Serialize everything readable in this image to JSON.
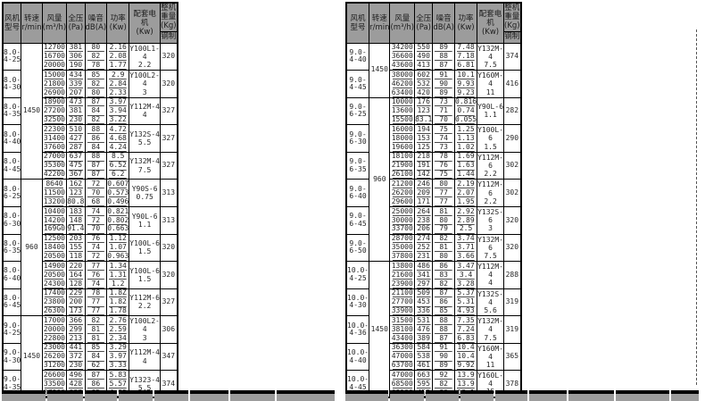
{
  "header": {
    "model": "风机型号",
    "speed": "转速",
    "speed_unit": "r/min",
    "flow": "风量",
    "flow_unit": "(m³/h)",
    "pressure": "全压",
    "pressure_unit": "(Pa)",
    "noise": "噪音",
    "noise_unit": "dB(A)",
    "power": "功率",
    "power_unit": "(Kw)",
    "motor": "配套电机",
    "motor_unit": "(Kw)",
    "weight": "整机重量(Kg)",
    "weight_sub": "钢制"
  },
  "colors": {
    "header_bg": "#9c9c9c",
    "border": "#000000",
    "text": "#262626",
    "background": "#ffffff"
  },
  "tables": [
    {
      "name": "left",
      "speed_spans": [
        {
          "label": "1450",
          "start": 0,
          "count": 5
        },
        {
          "label": "960",
          "start": 5,
          "count": 5
        },
        {
          "label": "1450",
          "start": 10,
          "count": 3
        }
      ],
      "groups": [
        {
          "model": "8.0-4-25",
          "motor": "Y100L1-4",
          "motor_kw": "2.2",
          "weight": "320",
          "rows": [
            [
              "12700",
              "381",
              "80",
              "2.16"
            ],
            [
              "16700",
              "306",
              "82",
              "2.08"
            ],
            [
              "20000",
              "190",
              "78",
              "1.77"
            ]
          ]
        },
        {
          "model": "8.0-4-30",
          "motor": "Y100L2-4",
          "motor_kw": "3",
          "weight": "320",
          "rows": [
            [
              "15000",
              "434",
              "85",
              "2.9"
            ],
            [
              "21800",
              "339",
              "82",
              "2.84"
            ],
            [
              "26900",
              "207",
              "80",
              "2.33"
            ]
          ]
        },
        {
          "model": "8.0-4-35",
          "motor": "Y112M-4",
          "motor_kw": "4",
          "weight": "327",
          "rows": [
            [
              "18900",
              "473",
              "87",
              "3.97"
            ],
            [
              "27200",
              "381",
              "84",
              "3.94"
            ],
            [
              "32500",
              "230",
              "82",
              "3.22"
            ]
          ]
        },
        {
          "model": "8.0-4-40",
          "motor": "Y132S-4",
          "motor_kw": "5.5",
          "weight": "327",
          "rows": [
            [
              "22300",
              "510",
              "88",
              "4.72"
            ],
            [
              "31400",
              "427",
              "86",
              "4.68"
            ],
            [
              "37600",
              "287",
              "84",
              "4.24"
            ]
          ]
        },
        {
          "model": "8.0-4-45",
          "motor": "Y132M-4",
          "motor_kw": "7.5",
          "weight": "327",
          "rows": [
            [
              "27000",
              "637",
              "88",
              "8.5"
            ],
            [
              "35300",
              "475",
              "87",
              "6.52"
            ],
            [
              "42200",
              "367",
              "87",
              "6.2"
            ]
          ]
        },
        {
          "model": "8.0-6-25",
          "motor": "Y90S-6",
          "motor_kw": "0.75",
          "weight": "313",
          "rows": [
            [
              "8640",
              "162",
              "72",
              "0.607"
            ],
            [
              "11500",
              "123",
              "70",
              "0.573"
            ],
            [
              "13200",
              "80.8",
              "68",
              "0.496"
            ]
          ]
        },
        {
          "model": "8.0-6-30",
          "motor": "Y90L-6",
          "motor_kw": "1.1",
          "weight": "313",
          "rows": [
            [
              "10400",
              "183",
              "74",
              "0.821"
            ],
            [
              "14200",
              "148",
              "72",
              "0.802"
            ],
            [
              "169G0",
              "91.4",
              "70",
              "0.663"
            ]
          ]
        },
        {
          "model": "8.0-6-35",
          "motor": "Y100L-6",
          "motor_kw": "1.5",
          "weight": "320",
          "rows": [
            [
              "12500",
              "203",
              "76",
              "1.12"
            ],
            [
              "18400",
              "155",
              "74",
              "1.07"
            ],
            [
              "20500",
              "118",
              "72",
              "0.963"
            ]
          ]
        },
        {
          "model": "8.0-6-40",
          "motor": "Y100L-6",
          "motor_kw": "1.5",
          "weight": "320",
          "rows": [
            [
              "14900",
              "220",
              "77",
              "1.34"
            ],
            [
              "20500",
              "164",
              "76",
              "1.31"
            ],
            [
              "24300",
              "128",
              "74",
              "1.2"
            ]
          ]
        },
        {
          "model": "8.0-6-45",
          "motor": "Y112M-6",
          "motor_kw": "2.2",
          "weight": "327",
          "rows": [
            [
              "17400",
              "229",
              "78",
              "1.8Z"
            ],
            [
              "23800",
              "200",
              "77",
              "1.82"
            ],
            [
              "26300",
              "173",
              "77",
              "1.78"
            ]
          ]
        },
        {
          "model": "9.0-4-25",
          "motor": "Y100L2-4",
          "motor_kw": "3",
          "weight": "306",
          "rows": [
            [
              "17000",
              "366",
              "82",
              "2.76"
            ],
            [
              "20000",
              "299",
              "81",
              "2.59"
            ],
            [
              "22800",
              "213",
              "81",
              "2.34"
            ]
          ]
        },
        {
          "model": "9.0-4-30",
          "motor": "Y112M-4",
          "motor_kw": "4",
          "weight": "347",
          "rows": [
            [
              "23000",
              "441",
              "85",
              "3.29"
            ],
            [
              "26200",
              "372",
              "84",
              "3.97"
            ],
            [
              "31200",
              "230",
              "62",
              "3.33"
            ]
          ]
        },
        {
          "model": "9.0-4-35",
          "motor": "Y1323-4",
          "motor_kw": "5.5",
          "weight": "374",
          "rows": [
            [
              "26600",
              "496",
              "87",
              "5.83"
            ],
            [
              "33500",
              "428",
              "86",
              "5.57"
            ],
            [
              "37800",
              "327",
              "85",
              "4.99"
            ]
          ]
        }
      ]
    },
    {
      "name": "right",
      "speed_spans": [
        {
          "label": "1450",
          "start": 0,
          "count": 2
        },
        {
          "label": "960",
          "start": 2,
          "count": 6
        },
        {
          "label": "1450",
          "start": 8,
          "count": 5
        }
      ],
      "groups": [
        {
          "model": "9.0-4-40",
          "motor": "Y132M-4",
          "motor_kw": "7.5",
          "weight": "374",
          "rows": [
            [
              "34200",
              "550",
              "89",
              "7.48"
            ],
            [
              "36600",
              "490",
              "88",
              "7.18"
            ],
            [
              "43600",
              "413",
              "87",
              "6.81"
            ]
          ]
        },
        {
          "model": "9.0-4-45",
          "motor": "Y160M-4",
          "motor_kw": "11",
          "weight": "416",
          "rows": [
            [
              "38000",
              "602",
              "91",
              "10.1"
            ],
            [
              "46200",
              "532",
              "90",
              "9.93"
            ],
            [
              "63400",
              "420",
              "89",
              "9.23"
            ]
          ]
        },
        {
          "model": "9.0-6-25",
          "motor": "Y90L-6",
          "motor_kw": "1.1",
          "weight": "282",
          "rows": [
            [
              "10000",
              "176",
              "73",
              "0.816"
            ],
            [
              "13600",
              "123",
              "71",
              "0.74"
            ],
            [
              "15500",
              "83.1",
              "70",
              "0.055"
            ]
          ]
        },
        {
          "model": "9.0-6-30",
          "motor": "Y100L-6",
          "motor_kw": "1.5",
          "weight": "290",
          "rows": [
            [
              "16000",
              "194",
              "75",
              "1.25"
            ],
            [
              "18000",
              "153",
              "74",
              "1.13"
            ],
            [
              "19600",
              "125",
              "73",
              "1.02"
            ]
          ]
        },
        {
          "model": "9.0-6-35",
          "motor": "Y112M-6",
          "motor_kw": "2.2",
          "weight": "302",
          "rows": [
            [
              "18100",
              "218",
              "78",
              "1.69"
            ],
            [
              "21900",
              "191",
              "76",
              "1.63"
            ],
            [
              "26100",
              "142",
              "75",
              "1.44"
            ]
          ]
        },
        {
          "model": "9.0-6-40",
          "motor": "Y112M-6",
          "motor_kw": "2.2",
          "weight": "302",
          "rows": [
            [
              "21200",
              "246",
              "80",
              "2.19"
            ],
            [
              "26200",
              "209",
              "77",
              "2.07"
            ],
            [
              "29600",
              "171",
              "77",
              "1.95"
            ]
          ]
        },
        {
          "model": "9.0-6-45",
          "motor": "Y132S-6",
          "motor_kw": "3",
          "weight": "320",
          "rows": [
            [
              "25000",
              "264",
              "81",
              "2.92"
            ],
            [
              "30000",
              "238",
              "80",
              "2.89"
            ],
            [
              "33700",
              "206",
              "79",
              "2.5"
            ]
          ]
        },
        {
          "model": "9.0-6-50",
          "motor": "Y132M-6",
          "motor_kw": "7.5",
          "weight": "320",
          "rows": [
            [
              "28700",
              "274",
              "82",
              "3.74"
            ],
            [
              "35000",
              "252",
              "81",
              "3.71"
            ],
            [
              "37800",
              "231",
              "80",
              "3.66"
            ]
          ]
        },
        {
          "model": "10.0-4-25",
          "motor": "Y112M-4",
          "motor_kw": "4",
          "weight": "288",
          "rows": [
            [
              "13800",
              "486",
              "86",
              "3.47"
            ],
            [
              "21600",
              "341",
              "83",
              "3.4"
            ],
            [
              "23900",
              "297",
              "82",
              "3.28"
            ]
          ]
        },
        {
          "model": "10.0-4-30",
          "motor": "Y132S-4",
          "motor_kw": "5.6",
          "weight": "319",
          "rows": [
            [
              "21100",
              "509",
              "87",
              "5.37"
            ],
            [
              "27700",
              "453",
              "86",
              "5.31"
            ],
            [
              "33900",
              "336",
              "85",
              "4.93"
            ]
          ]
        },
        {
          "model": "10.0-4-36",
          "motor": "Y132M-4",
          "motor_kw": "7.5",
          "weight": "319",
          "rows": [
            [
              "31500",
              "531",
              "88",
              "7.35"
            ],
            [
              "38100",
              "476",
              "88",
              "7.24"
            ],
            [
              "43400",
              "389",
              "87",
              "6.83"
            ]
          ]
        },
        {
          "model": "10.0-4-40",
          "motor": "Y160M-4",
          "motor_kw": "11",
          "weight": "365",
          "rows": [
            [
              "36300",
              "584",
              "91",
              "10.4"
            ],
            [
              "47000",
              "538",
              "90",
              "10.4"
            ],
            [
              "63700",
              "461",
              "89",
              "9.92"
            ]
          ]
        },
        {
          "model": "10.0-4-45",
          "motor": "Y160L-4",
          "motor_kw": "15",
          "weight": "378",
          "rows": [
            [
              "47000",
              "663",
              "92",
              "13.9"
            ],
            [
              "68500",
              "595",
              "82",
              "13.9"
            ],
            [
              "69100",
              "458",
              "90",
              "13.1"
            ]
          ]
        }
      ]
    }
  ]
}
